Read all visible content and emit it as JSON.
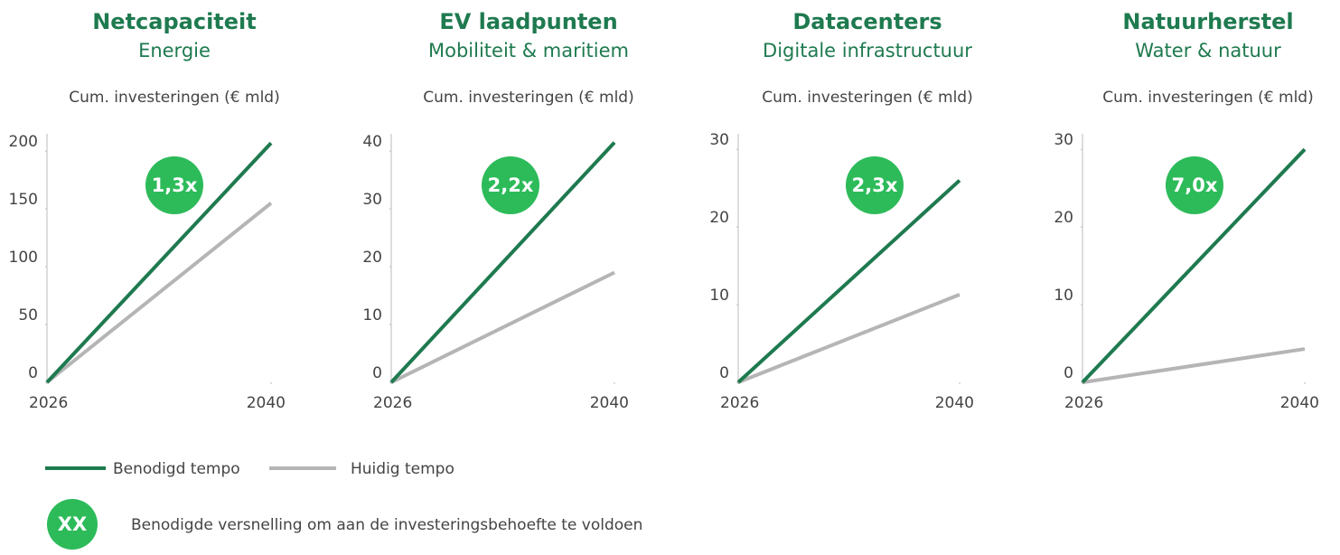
{
  "chart_data": [
    {
      "type": "line",
      "title": "Netcapaciteit",
      "subtitle": "Energie",
      "ylabel": "Cum. investeringen (€ mld)",
      "annotation": "1,3x",
      "x": [
        2026,
        2040
      ],
      "xlim": [
        2026,
        2040
      ],
      "xticks": [
        2026,
        2040
      ],
      "ylim": [
        0,
        215
      ],
      "yticks": [
        0,
        50,
        100,
        150,
        200
      ],
      "series": [
        {
          "name": "Benodigd tempo",
          "color": "#1e7a4f",
          "values": [
            0,
            207
          ]
        },
        {
          "name": "Huidig tempo",
          "color": "#b5b5b5",
          "values": [
            0,
            155
          ]
        }
      ]
    },
    {
      "type": "line",
      "title": "EV laadpunten",
      "subtitle": "Mobiliteit & maritiem",
      "ylabel": "Cum. investeringen (€ mld)",
      "annotation": "2,2x",
      "x": [
        2026,
        2040
      ],
      "xlim": [
        2026,
        2040
      ],
      "xticks": [
        2026,
        2040
      ],
      "ylim": [
        0,
        43
      ],
      "yticks": [
        0,
        10,
        20,
        30,
        40
      ],
      "series": [
        {
          "name": "Benodigd tempo",
          "color": "#1e7a4f",
          "values": [
            0,
            41.5
          ]
        },
        {
          "name": "Huidig tempo",
          "color": "#b5b5b5",
          "values": [
            0,
            19
          ]
        }
      ]
    },
    {
      "type": "line",
      "title": "Datacenters",
      "subtitle": "Digitale infrastructuur",
      "ylabel": "Cum. investeringen (€ mld)",
      "annotation": "2,3x",
      "x": [
        2026,
        2040
      ],
      "xlim": [
        2026,
        2040
      ],
      "xticks": [
        2026,
        2040
      ],
      "ylim": [
        0,
        32
      ],
      "yticks": [
        0,
        10,
        20,
        30
      ],
      "series": [
        {
          "name": "Benodigd tempo",
          "color": "#1e7a4f",
          "values": [
            0,
            26
          ]
        },
        {
          "name": "Huidig tempo",
          "color": "#b5b5b5",
          "values": [
            0,
            11.3
          ]
        }
      ]
    },
    {
      "type": "line",
      "title": "Natuurherstel",
      "subtitle": "Water & natuur",
      "ylabel": "Cum. investeringen (€ mld)",
      "annotation": "7,0x",
      "x": [
        2026,
        2040
      ],
      "xlim": [
        2026,
        2040
      ],
      "xticks": [
        2026,
        2040
      ],
      "ylim": [
        0,
        32
      ],
      "yticks": [
        0,
        10,
        20,
        30
      ],
      "series": [
        {
          "name": "Benodigd tempo",
          "color": "#1e7a4f",
          "values": [
            0,
            30
          ]
        },
        {
          "name": "Huidig tempo",
          "color": "#b5b5b5",
          "values": [
            0,
            4.3
          ]
        }
      ]
    }
  ],
  "note": {
    "symbol": "XX",
    "text": "Benodigde versnelling om aan de investeringsbehoefte te voldoen"
  }
}
